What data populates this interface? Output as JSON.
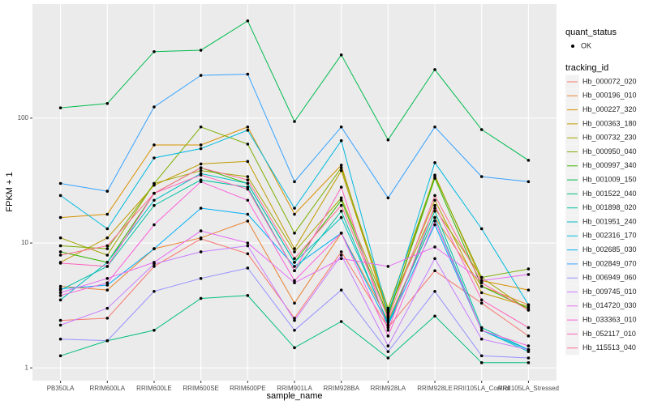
{
  "chart_data": {
    "type": "line",
    "y_log": true,
    "grid": true,
    "x_label": "sample_name",
    "y_label": "FPKM + 1",
    "categories": [
      "PB350LA",
      "RRIM600LA",
      "RRIM600LE",
      "RRIM600SE",
      "RRIM600PE",
      "RRIM901LA",
      "RRIM928BA",
      "RRIM928LA",
      "RRIM928LE",
      "RRII105LA_Control",
      "RRII105LA_Stressed"
    ],
    "ylim": [
      0.79,
      820
    ],
    "yticks": [
      1,
      10,
      100
    ],
    "shape_legend": {
      "title": "quant_status",
      "labels": [
        "OK"
      ]
    },
    "legend_title": "tracking_id",
    "series": [
      {
        "name": "Hb_000072_020",
        "color": "#F8766D",
        "values": [
          2.4,
          2.5,
          6.5,
          10.8,
          8.2,
          2.5,
          8.5,
          2.1,
          6,
          3.3,
          1.8
        ]
      },
      {
        "name": "Hb_000196_010",
        "color": "#EA8331",
        "values": [
          4.5,
          4.2,
          9,
          11,
          15,
          3.3,
          12,
          2.4,
          16,
          4.5,
          3.2
        ]
      },
      {
        "name": "Hb_000227_320",
        "color": "#D89000",
        "values": [
          16,
          17,
          61,
          61,
          85,
          17,
          42,
          2.6,
          35,
          5,
          4.2
        ]
      },
      {
        "name": "Hb_000363_180",
        "color": "#C09B00",
        "values": [
          7,
          11,
          29,
          43,
          45,
          9,
          38,
          2.8,
          22,
          4,
          3.1
        ]
      },
      {
        "name": "Hb_000732_230",
        "color": "#A3A500",
        "values": [
          11,
          8,
          30,
          38,
          34,
          8.5,
          23,
          2.9,
          19,
          5.3,
          2.9
        ]
      },
      {
        "name": "Hb_000950_040",
        "color": "#7CAE00",
        "values": [
          9.5,
          9,
          30,
          85,
          62,
          12,
          40,
          3,
          34,
          5.3,
          6.2
        ]
      },
      {
        "name": "Hb_000997_340",
        "color": "#39B600",
        "values": [
          8.5,
          7,
          25,
          40,
          30,
          7,
          22,
          2.6,
          33,
          4.5,
          3.0
        ]
      },
      {
        "name": "Hb_001009_150",
        "color": "#00BB4E",
        "values": [
          121,
          131,
          341,
          350,
          601,
          94,
          321,
          67,
          245,
          81,
          46
        ]
      },
      {
        "name": "Hb_001522_040",
        "color": "#00BF7D",
        "values": [
          1.25,
          1.65,
          2.0,
          3.6,
          3.8,
          1.45,
          2.35,
          1.2,
          2.6,
          1.1,
          1.1
        ]
      },
      {
        "name": "Hb_001898_020",
        "color": "#00C1A3",
        "values": [
          4.2,
          6.5,
          20,
          32,
          28,
          6,
          18,
          2.2,
          18,
          2.1,
          1.4
        ]
      },
      {
        "name": "Hb_001951_240",
        "color": "#00BFC4",
        "values": [
          3.5,
          7,
          22,
          36,
          30,
          7,
          16,
          2.3,
          16,
          2.0,
          1.35
        ]
      },
      {
        "name": "Hb_002316_170",
        "color": "#00BAE0",
        "values": [
          24,
          13,
          48,
          57,
          80,
          19,
          66,
          2.7,
          44,
          13,
          3.2
        ]
      },
      {
        "name": "Hb_002685_030",
        "color": "#00B0F6",
        "values": [
          4.3,
          4.6,
          9,
          19,
          17,
          6.5,
          12,
          2.2,
          14,
          2,
          1.4
        ]
      },
      {
        "name": "Hb_002849_070",
        "color": "#35A2FF",
        "values": [
          30,
          26,
          123,
          220,
          225,
          31,
          85,
          23,
          85,
          34,
          31
        ]
      },
      {
        "name": "Hb_006949_060",
        "color": "#9590FF",
        "values": [
          1.7,
          1.65,
          4.1,
          5.2,
          6.3,
          2.0,
          4.2,
          1.35,
          4.1,
          1.25,
          1.2
        ]
      },
      {
        "name": "Hb_009745_010",
        "color": "#C77CFF",
        "values": [
          2.2,
          3.0,
          6.8,
          8.5,
          9.5,
          2.4,
          8,
          1.5,
          7.5,
          1.7,
          1.4
        ]
      },
      {
        "name": "Hb_014720_030",
        "color": "#E76BF3",
        "values": [
          4.0,
          5.2,
          7,
          12.5,
          10,
          4.8,
          7.5,
          6.5,
          9.3,
          5.0,
          5.6
        ]
      },
      {
        "name": "Hb_033363_010",
        "color": "#FA62DB",
        "values": [
          3.8,
          4.8,
          14,
          31,
          22,
          5,
          12,
          1.8,
          15,
          2,
          1.5
        ]
      },
      {
        "name": "Hb_052117_010",
        "color": "#FF62BC",
        "values": [
          6.9,
          6.5,
          25,
          35,
          27,
          6,
          28,
          2.0,
          20,
          3.5,
          2.1
        ]
      },
      {
        "name": "Hb_115513_040",
        "color": "#FF6C91",
        "values": [
          8,
          9.5,
          25,
          40,
          32,
          7.5,
          20,
          2.5,
          24,
          4.8,
          2.9
        ]
      }
    ]
  }
}
